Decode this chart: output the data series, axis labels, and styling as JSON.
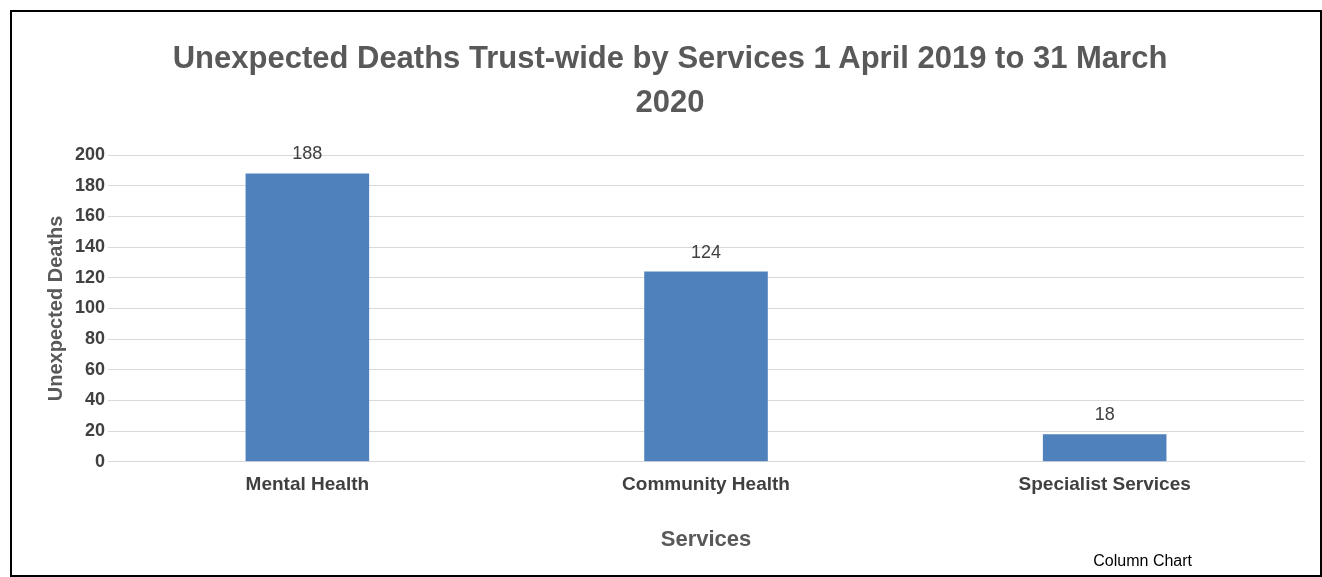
{
  "chart_data": {
    "type": "bar",
    "title": "Unexpected Deaths Trust-wide by Services 1 April 2019 to 31 March 2020",
    "xlabel": "Services",
    "ylabel": "Unexpected Deaths",
    "categories": [
      "Mental Health",
      "Community Health",
      "Specialist Services"
    ],
    "values": [
      188,
      124,
      18
    ],
    "color": "#4f81bd",
    "ylim": [
      0,
      200
    ],
    "yticks": [
      0,
      20,
      40,
      60,
      80,
      100,
      120,
      140,
      160,
      180,
      200
    ],
    "grid": "y",
    "legend": false,
    "data_labels": true,
    "annotations": [
      "Column Chart"
    ]
  }
}
